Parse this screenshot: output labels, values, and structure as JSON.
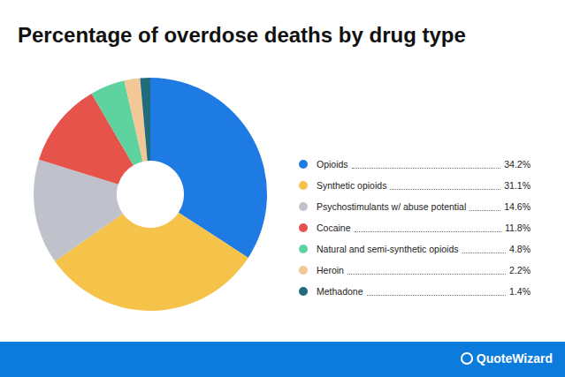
{
  "chart_data": {
    "type": "pie",
    "title": "Percentage of overdose deaths by drug type",
    "categories": [
      "Opioids",
      "Synthetic opioids",
      "Psychostimulants w/ abuse potential",
      "Cocaine",
      "Natural and semi-synthetic opioids",
      "Heroin",
      "Methadone"
    ],
    "values": [
      34.2,
      31.1,
      14.6,
      11.8,
      4.8,
      2.2,
      1.4
    ],
    "value_labels": [
      "34.2%",
      "31.1%",
      "14.6%",
      "11.8%",
      "4.8%",
      "2.2%",
      "1.4%"
    ],
    "colors": [
      "#1e7be3",
      "#f5c24a",
      "#bfc2ca",
      "#e6534b",
      "#5ed3a0",
      "#f4c796",
      "#216c7c"
    ],
    "legend": "right",
    "annotations": [
      "QuoteWizard"
    ]
  }
}
